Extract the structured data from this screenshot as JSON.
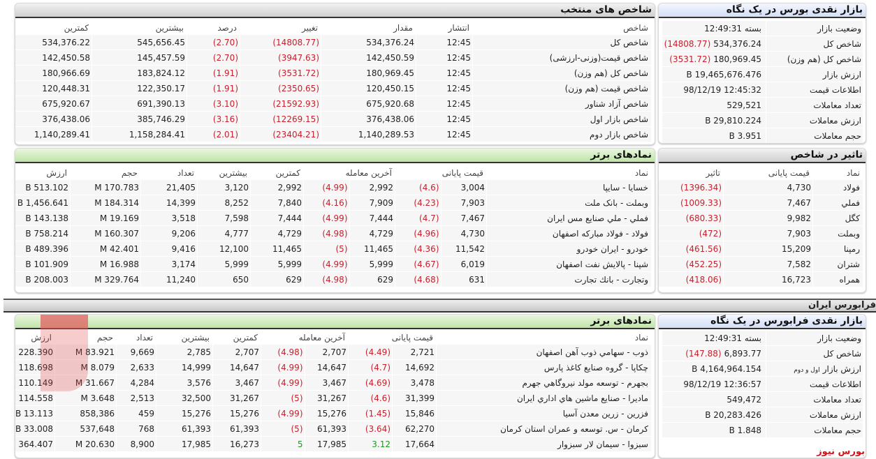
{
  "bourse_glance": {
    "title": "بازار نقدی بورس در یک نگاه",
    "rows": [
      {
        "label": "وضعیت بازار",
        "value": "بسته 12:49:31",
        "change": ""
      },
      {
        "label": "شاخص کل",
        "value": "534,376.24",
        "change": "(14808.77)"
      },
      {
        "label": "شاخص کل (هم وزن)",
        "value": "180,969.45",
        "change": "(3531.72)"
      },
      {
        "label": "ارزش بازار",
        "value": "19,465,676.476 B",
        "change": ""
      },
      {
        "label": "اطلاعات قیمت",
        "value": "12:45:32 98/12/19",
        "change": ""
      },
      {
        "label": "تعداد معاملات",
        "value": "529,521",
        "change": ""
      },
      {
        "label": "ارزش معاملات",
        "value": "29,810.224 B",
        "change": ""
      },
      {
        "label": "حجم معاملات",
        "value": "3.951 B",
        "change": ""
      }
    ]
  },
  "selected_indices": {
    "title": "شاخص های منتخب",
    "headers": [
      "شاخص",
      "انتشار",
      "مقدار",
      "تغییر",
      "درصد",
      "بیشترین",
      "کمترین"
    ],
    "rows": [
      [
        "شاخص کل",
        "12:45",
        "534,376.24",
        "(14808.77)",
        "(2.70)",
        "545,656.45",
        "534,376.22"
      ],
      [
        "شاخص قیمت(وزنی-ارزشی)",
        "12:45",
        "142,450.59",
        "(3947.63)",
        "(2.70)",
        "145,457.59",
        "142,450.58"
      ],
      [
        "شاخص کل (هم وزن)",
        "12:45",
        "180,969.45",
        "(3531.72)",
        "(1.91)",
        "183,824.12",
        "180,966.69"
      ],
      [
        "شاخص قیمت (هم وزن)",
        "12:45",
        "120,450.15",
        "(2350.65)",
        "(1.91)",
        "122,350.17",
        "120,448.31"
      ],
      [
        "شاخص آزاد شناور",
        "12:45",
        "675,920.68",
        "(21592.93)",
        "(3.10)",
        "691,390.13",
        "675,920.67"
      ],
      [
        "شاخص بازار اول",
        "12:45",
        "376,438.06",
        "(12269.15)",
        "(3.16)",
        "385,746.29",
        "376,438.06"
      ],
      [
        "شاخص بازار دوم",
        "12:45",
        "1,140,289.53",
        "(23404.21)",
        "(2.01)",
        "1,158,284.41",
        "1,140,289.41"
      ]
    ]
  },
  "bourse_top": {
    "title": "نمادهای برتر",
    "headers": [
      "نماد",
      "قیمت پایانی",
      "آخرین معامله",
      "کمترین",
      "بیشترین",
      "تعداد",
      "حجم",
      "ارزش"
    ],
    "rows": [
      [
        "خسایا - سایپا",
        "3,004",
        "(4.6)",
        "2,992",
        "(4.99)",
        "2,992",
        "3,120",
        "21,405",
        "170.783 M",
        "513.102 B"
      ],
      [
        "وبملت - بانک ملت",
        "7,903",
        "(4.23)",
        "7,909",
        "(4.16)",
        "7,840",
        "8,252",
        "14,399",
        "184.314 M",
        "1,456.641 B"
      ],
      [
        "فملي - ملي صنايع مس ايران",
        "7,467",
        "(4.7)",
        "7,444",
        "(4.99)",
        "7,444",
        "7,598",
        "3,518",
        "19.169 M",
        "143.138 B"
      ],
      [
        "فولاد - فولاد مباركه اصفهان",
        "4,730",
        "(4.96)",
        "4,729",
        "(4.98)",
        "4,729",
        "4,777",
        "9,206",
        "160.307 M",
        "758.214 B"
      ],
      [
        "خودرو - ايران خودرو",
        "11,542",
        "(4.36)",
        "11,465",
        "(5)",
        "11,465",
        "12,100",
        "9,416",
        "42.401 M",
        "489.396 B"
      ],
      [
        "شپنا - پالايش نفت اصفهان",
        "6,019",
        "(4.67)",
        "5,999",
        "(4.99)",
        "5,999",
        "5,999",
        "3,174",
        "16.988 M",
        "101.909 B"
      ],
      [
        "وتجارت - بانك تجارت",
        "631",
        "(4.68)",
        "629",
        "(4.98)",
        "629",
        "650",
        "11,240",
        "329.764 M",
        "208.003 B"
      ]
    ]
  },
  "index_impact": {
    "title": "تاثیر در شاخص",
    "headers": [
      "نماد",
      "قیمت پایانی",
      "تاثیر"
    ],
    "rows": [
      [
        "فولاد",
        "4,730",
        "(1396.34)"
      ],
      [
        "فملي",
        "7,467",
        "(1009.33)"
      ],
      [
        "كگل",
        "9,982",
        "(680.33)"
      ],
      [
        "وبملت",
        "7,903",
        "(472)"
      ],
      [
        "رمپنا",
        "15,209",
        "(461.56)"
      ],
      [
        "شتران",
        "7,582",
        "(452.25)"
      ],
      [
        "همراه",
        "16,723",
        "(418.06)"
      ]
    ]
  },
  "separator": {
    "title": "فرابورس ایران"
  },
  "farabourse_glance": {
    "title": "بازار نقدی فرابورس در یک نگاه",
    "rows": [
      {
        "label": "وضعیت بازار",
        "value": "بسته 12:49:31",
        "change": ""
      },
      {
        "label": "شاخص کل",
        "value": "6,893.77",
        "change": "(147.88)"
      },
      {
        "label": "ارزش بازار",
        "label_small": "اول و دوم",
        "value": "4,164,964.154 B",
        "change": ""
      },
      {
        "label": "اطلاعات قیمت",
        "value": "12:36:57 98/12/19",
        "change": ""
      },
      {
        "label": "تعداد معاملات",
        "value": "549,472",
        "change": ""
      },
      {
        "label": "ارزش معاملات",
        "value": "20,283.426 B",
        "change": ""
      },
      {
        "label": "حجم معاملات",
        "value": "1.848 B",
        "change": ""
      }
    ]
  },
  "farabourse_top": {
    "title": "نمادهای برتر",
    "headers": [
      "نماد",
      "قیمت پایانی",
      "آخرین معامله",
      "کمترین",
      "بیشترین",
      "تعداد",
      "حجم",
      "ارزش"
    ],
    "rows": [
      [
        "ذوب - سهامي ذوب آهن اصفهان",
        "2,721",
        "(4.49)",
        "2,707",
        "(4.98)",
        "2,707",
        "2,785",
        "9,669",
        "83.921 M",
        "228.390 B"
      ],
      [
        "چكاپا - گروه صنايع كاغذ پارس",
        "14,692",
        "(4.7)",
        "14,647",
        "(4.99)",
        "14,647",
        "14,999",
        "2,633",
        "8.079 M",
        "118.698 B"
      ],
      [
        "بجهرم - توسعه مولد نيروگاهي جهرم",
        "3,478",
        "(4.69)",
        "3,467",
        "(4.99)",
        "3,467",
        "3,576",
        "4,284",
        "31.667 M",
        "110.149 B"
      ],
      [
        "ماديرا - صنايع ماشين هاي اداري ايران",
        "31,399",
        "(4.6)",
        "31,267",
        "(5)",
        "31,267",
        "32,500",
        "2,513",
        "3.648 M",
        "114.558 B"
      ],
      [
        "فزرين - زرين معدن آسيا",
        "15,846",
        "(1.45)",
        "15,276",
        "(4.99)",
        "15,276",
        "15,276",
        "459",
        "858,386",
        "13.113 B"
      ],
      [
        "كرمان - س. توسعه و عمران استان كرمان",
        "62,270",
        "(3.64)",
        "61,393",
        "(5)",
        "61,393",
        "61,393",
        "768",
        "537,648",
        "33.008 B"
      ],
      [
        "سبزوا - سيمان لار سبزوار",
        "17,664",
        "3.12",
        "17,985",
        "5",
        "16,273",
        "17,985",
        "8,900",
        "20.630 M",
        "364.407 B"
      ]
    ]
  },
  "brand": "بورس نیوز",
  "colors": {
    "negative": "#c8202c",
    "positive": "#1c9a1c"
  }
}
